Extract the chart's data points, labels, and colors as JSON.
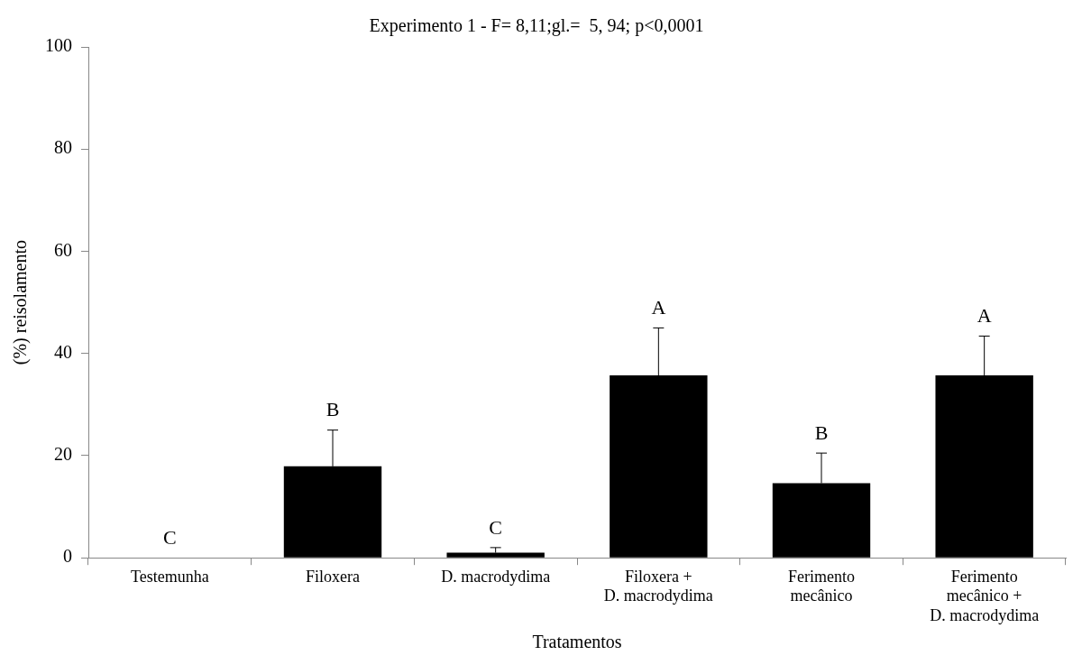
{
  "chart_data": {
    "type": "bar",
    "title": "Experimento 1 - F= 8,11;gl.=  5, 94; p<0,0001",
    "xlabel": "Tratamentos",
    "ylabel": "(%) reisolamento",
    "categories": [
      "Testemunha",
      "Filoxera",
      "D. macrodydima",
      "Filoxera +\nD. macrodydima",
      "Ferimento\nmecânico",
      "Ferimento\nmecânico +\nD. macrodydima"
    ],
    "values": [
      0,
      17.9,
      1,
      35.7,
      14.6,
      35.7
    ],
    "errors": [
      null,
      [
        17.9,
        25
      ],
      [
        1,
        2
      ],
      [
        35.7,
        45
      ],
      [
        14.6,
        20.5
      ],
      [
        35.7,
        43.4
      ]
    ],
    "value_labels": [
      "C",
      "B",
      "C",
      "A",
      "B",
      "A"
    ],
    "color": "#000000",
    "ylim": [
      0,
      100
    ],
    "yticks": [
      0,
      20,
      40,
      60,
      80,
      100
    ],
    "grid": false,
    "legend": false
  }
}
